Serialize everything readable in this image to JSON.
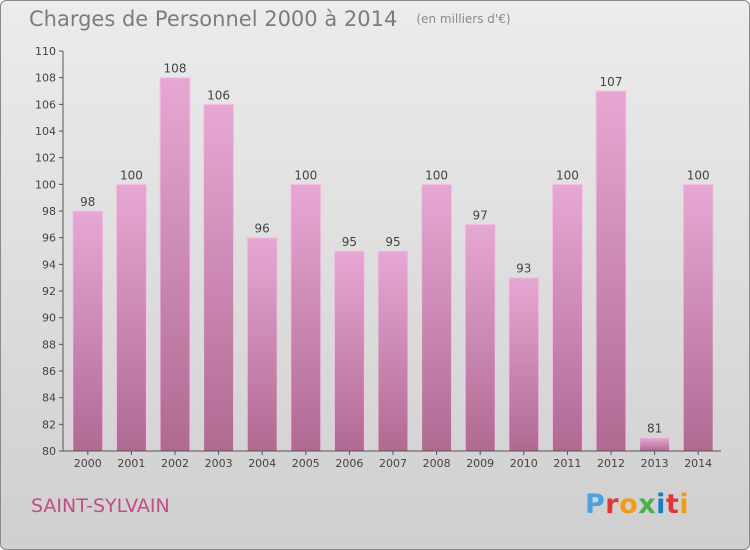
{
  "header": {
    "title": "Charges de Personnel 2000 à 2014",
    "subtitle": "(en milliers d'€)"
  },
  "footer": {
    "commune": "SAINT-SYLVAIN",
    "logo": {
      "text": "Proxiti",
      "letter_colors": [
        "#4aa3df",
        "#e2343a",
        "#f39c12",
        "#4cae4c",
        "#1a7fc1",
        "#e2343a",
        "#f39c12"
      ]
    }
  },
  "colors": {
    "bar_top": "#e6a8d3",
    "bar_bottom": "#b06a92",
    "bar_edge": "#f2c6e3",
    "axis": "#555555",
    "text": "#444444"
  },
  "chart_data": {
    "type": "bar",
    "categories": [
      "2000",
      "2001",
      "2002",
      "2003",
      "2004",
      "2005",
      "2006",
      "2007",
      "2008",
      "2009",
      "2010",
      "2011",
      "2012",
      "2013",
      "2014"
    ],
    "values": [
      98,
      100,
      108,
      106,
      96,
      100,
      95,
      95,
      100,
      97,
      93,
      100,
      107,
      81,
      100
    ],
    "ylim": [
      80,
      110
    ],
    "yticks": [
      80,
      82,
      84,
      86,
      88,
      90,
      92,
      94,
      96,
      98,
      100,
      102,
      104,
      106,
      108,
      110
    ],
    "grid": false,
    "data_labels": true
  }
}
